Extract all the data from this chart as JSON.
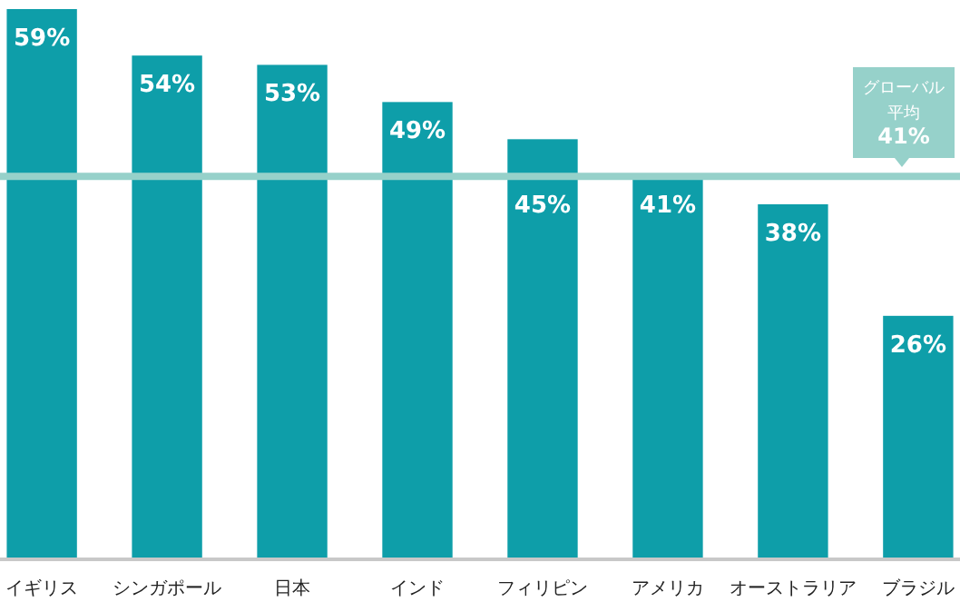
{
  "chart_data": {
    "type": "bar",
    "categories": [
      "イギリス",
      "シンガポール",
      "日本",
      "インド",
      "フィリピン",
      "アメリカ",
      "オーストラリア",
      "ブラジル"
    ],
    "values": [
      59,
      54,
      53,
      49,
      45,
      41,
      38,
      26
    ],
    "value_labels": [
      "59%",
      "54%",
      "53%",
      "49%",
      "45%",
      "41%",
      "38%",
      "26%"
    ],
    "color": "#0e9ea9",
    "ref_lines": [
      {
        "axis": "y",
        "value": 41,
        "label": [
          "グローバル",
          "平均",
          "41%"
        ],
        "color": "#96d1ca"
      }
    ]
  }
}
